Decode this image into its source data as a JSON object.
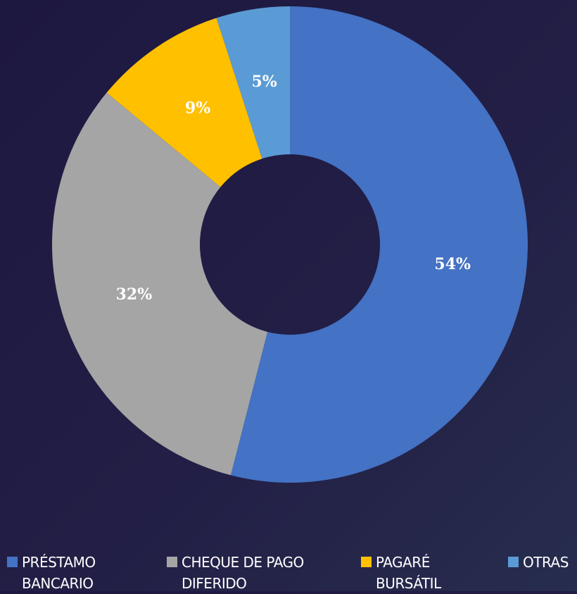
{
  "chart_data": {
    "type": "donut",
    "categories": [
      "PRÉSTAMO BANCARIO",
      "CHEQUE DE PAGO DIFERIDO",
      "PAGARÉ BURSÁTIL",
      "OTRAS"
    ],
    "values": [
      54,
      32,
      9,
      5
    ],
    "value_labels": [
      "54%",
      "32%",
      "9%",
      "5%"
    ],
    "colors": [
      "#4472c4",
      "#a5a5a5",
      "#ffc000",
      "#5b9bd5"
    ],
    "legend": "bottom"
  }
}
